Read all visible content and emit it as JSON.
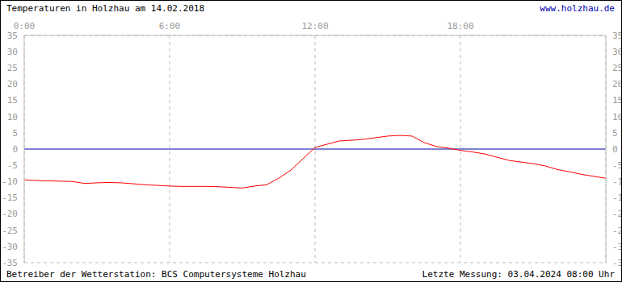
{
  "chart_data": {
    "type": "line",
    "title": "Temperaturen in Holzhau am 14.02.2018",
    "annotations": [
      "www.holzhau.de",
      "Betreiber der Wetterstation: BCS Computersysteme Holzhau",
      "Letzte Messung: 03.04.2024 08:00 Uhr"
    ],
    "x": [
      0,
      0.5,
      1,
      1.5,
      2,
      2.5,
      3,
      3.5,
      4,
      4.5,
      5,
      5.5,
      6,
      6.5,
      7,
      7.5,
      8,
      8.5,
      9,
      9.5,
      10,
      10.5,
      11,
      11.5,
      12,
      12.5,
      13,
      13.5,
      14,
      14.5,
      15,
      15.5,
      16,
      16.5,
      17,
      17.5,
      18,
      18.5,
      19,
      19.5,
      20,
      20.5,
      21,
      21.5,
      22,
      22.5,
      23,
      23.5,
      24
    ],
    "values": [
      -9.5,
      -9.7,
      -9.8,
      -9.9,
      -10,
      -10.6,
      -10.4,
      -10.3,
      -10.4,
      -10.7,
      -11,
      -11.2,
      -11.4,
      -11.5,
      -11.5,
      -11.5,
      -11.6,
      -11.8,
      -12,
      -11.4,
      -11,
      -9,
      -6.5,
      -3,
      0.5,
      1.5,
      2.5,
      2.7,
      3,
      3.5,
      4,
      4.2,
      4,
      2,
      0.8,
      0.3,
      -0.4,
      -0.9,
      -1.5,
      -2.5,
      -3.5,
      -4,
      -4.5,
      -5.2,
      -6.3,
      -7,
      -7.8,
      -8.4,
      -9
    ],
    "color": "#ff0000",
    "xlim": [
      0,
      24
    ],
    "xticks": [
      {
        "value": 0,
        "label": "0:00"
      },
      {
        "value": 6,
        "label": "6:00"
      },
      {
        "value": 12,
        "label": "12:00"
      },
      {
        "value": 18,
        "label": "18:00"
      }
    ],
    "ylim": [
      -35,
      35
    ],
    "yticks": [
      -35,
      -30,
      -25,
      -20,
      -15,
      -10,
      -5,
      0,
      5,
      10,
      15,
      20,
      25,
      30,
      35
    ],
    "hline": {
      "value": 0,
      "color": "#0000aa"
    },
    "grid": true
  }
}
